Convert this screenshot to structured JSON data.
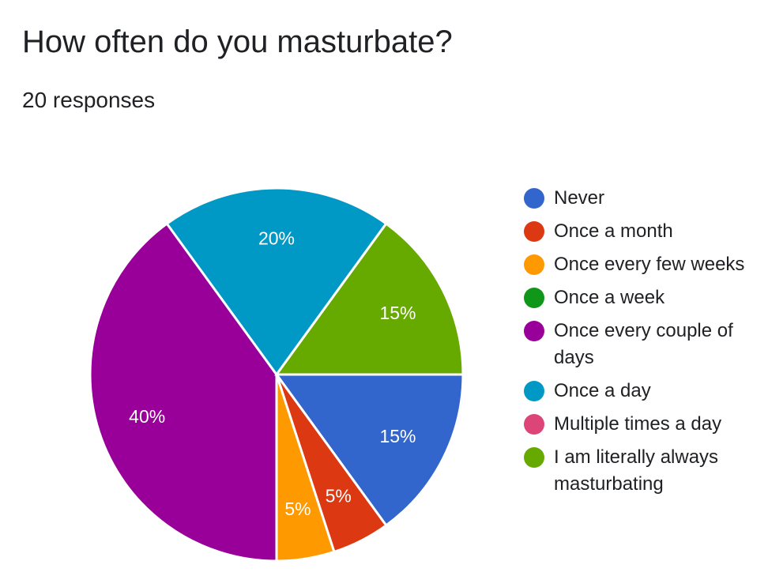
{
  "header": {
    "title": "How often do you masturbate?",
    "subtitle": "20 responses"
  },
  "chart_data": {
    "type": "pie",
    "title": "How often do you masturbate?",
    "subtitle": "20 responses",
    "legend_position": "right",
    "categories": [
      "Never",
      "Once a month",
      "Once every few weeks",
      "Once a week",
      "Once every couple of days",
      "Once a day",
      "Multiple times a day",
      "I am literally always masturbating"
    ],
    "values": [
      15,
      5,
      5,
      0,
      40,
      20,
      0,
      15
    ],
    "labels": [
      "15%",
      "5%",
      "5%",
      "",
      "40%",
      "20%",
      "",
      "15%"
    ],
    "colors": [
      "#3366cc",
      "#dc3912",
      "#ff9900",
      "#109618",
      "#990099",
      "#0099c6",
      "#dd4477",
      "#66aa00"
    ]
  }
}
